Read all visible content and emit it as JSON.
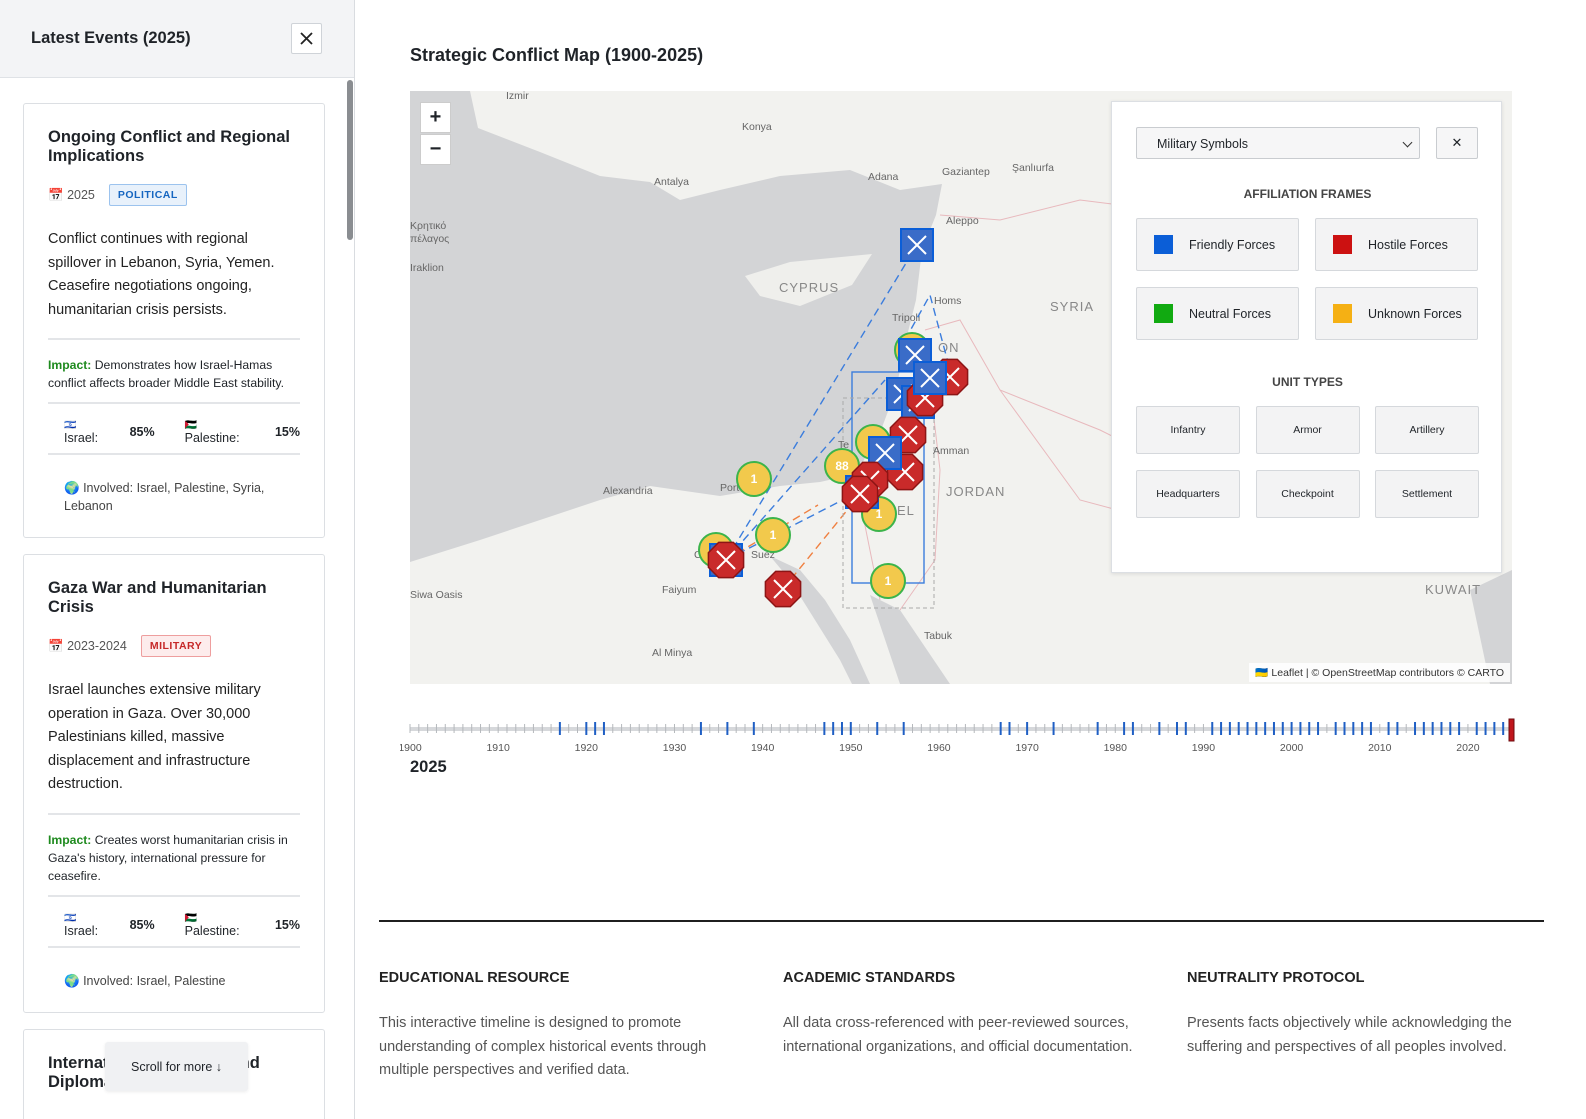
{
  "sidebar": {
    "title": "Latest Events (2025)",
    "icons": {
      "calendar": "📅",
      "globe": "🌍"
    },
    "scroll_hint": "Scroll for more ↓",
    "events": [
      {
        "title": "Ongoing Conflict and Regional Implications",
        "date": "2025",
        "tag": "POLITICAL",
        "description": "Conflict continues with regional spillover in Lebanon, Syria, Yemen. Ceasefire negotiations ongoing, humanitarian crisis persists.",
        "impact_label": "Impact:",
        "impact": "Demonstrates how Israel-Hamas conflict affects broader Middle East stability.",
        "perspectives": [
          {
            "flag": "🇮🇱",
            "label": "Israel:",
            "value": "85%"
          },
          {
            "flag": "🇵🇸",
            "label": "Palestine:",
            "value": "15%"
          }
        ],
        "involved": "Involved: Israel, Palestine, Syria, Lebanon"
      },
      {
        "title": "Gaza War and Humanitarian Crisis",
        "date": "2023-2024",
        "tag": "MILITARY",
        "description": "Israel launches extensive military operation in Gaza. Over 30,000 Palestinians killed, massive displacement and infrastructure destruction.",
        "impact_label": "Impact:",
        "impact": "Creates worst humanitarian crisis in Gaza's history, international pressure for ceasefire.",
        "perspectives": [
          {
            "flag": "🇮🇱",
            "label": "Israel:",
            "value": "85%"
          },
          {
            "flag": "🇵🇸",
            "label": "Palestine:",
            "value": "15%"
          }
        ],
        "involved": "Involved: Israel, Palestine"
      },
      {
        "title": "International Relations and Diplomacy"
      }
    ]
  },
  "map": {
    "title": "Strategic Conflict Map (1900-2025)",
    "zoom_in": "+",
    "zoom_out": "−",
    "attribution": "🇺🇦 Leaflet | © OpenStreetMap contributors © CARTO",
    "places": [
      "İzmir",
      "Konya",
      "Adana",
      "Gaziantep",
      "Şanlıurfa",
      "Antalya",
      "Aleppo",
      "Κρητικό",
      "πέλαγος",
      "Iraklion",
      "CYPRUS",
      "Homs",
      "SYRIA",
      "Tripoli",
      "ON",
      "Amman",
      "JORDAN",
      "Alexandria",
      "Port",
      "Suez",
      "Faiyum",
      "Siwa Oasis",
      "Al Minya",
      "Tabuk",
      "KUWAIT",
      "Te",
      "EL",
      "C"
    ],
    "clusters": [
      "1",
      "1",
      "88",
      "1",
      "1"
    ],
    "legend": {
      "select": "Military Symbols",
      "close": "✕",
      "affiliation_title": "AFFILIATION FRAMES",
      "affiliations": [
        {
          "name": "Friendly Forces",
          "color": "#0b5ed7"
        },
        {
          "name": "Hostile Forces",
          "color": "#cc1111"
        },
        {
          "name": "Neutral Forces",
          "color": "#11aa11"
        },
        {
          "name": "Unknown Forces",
          "color": "#f5b014"
        }
      ],
      "unit_title": "UNIT TYPES",
      "units": [
        "Infantry",
        "Armor",
        "Artillery",
        "Headquarters",
        "Checkpoint",
        "Settlement"
      ]
    }
  },
  "timeline": {
    "range": [
      1900,
      2025
    ],
    "labels": [
      1900,
      1910,
      1920,
      1930,
      1940,
      1950,
      1960,
      1970,
      1980,
      1990,
      2000,
      2010,
      2020
    ],
    "event_years": [
      1917,
      1920,
      1921,
      1922,
      1933,
      1936,
      1939,
      1947,
      1948,
      1949,
      1950,
      1953,
      1956,
      1967,
      1968,
      1970,
      1973,
      1978,
      1981,
      1982,
      1985,
      1987,
      1988,
      1991,
      1992,
      1993,
      1994,
      1995,
      1996,
      1997,
      1998,
      1999,
      2000,
      2001,
      2002,
      2003,
      2005,
      2006,
      2007,
      2008,
      2009,
      2011,
      2012,
      2014,
      2015,
      2016,
      2017,
      2018,
      2019,
      2021,
      2022,
      2023,
      2024
    ],
    "current": "2025"
  },
  "footer": [
    {
      "heading": "EDUCATIONAL RESOURCE",
      "text": "This interactive timeline is designed to promote understanding of complex historical events through multiple perspectives and verified data."
    },
    {
      "heading": "ACADEMIC STANDARDS",
      "text": "All data cross-referenced with peer-reviewed sources, international organizations, and official documentation."
    },
    {
      "heading": "NEUTRALITY PROTOCOL",
      "text": "Presents facts objectively while acknowledging the suffering and perspectives of all peoples involved."
    }
  ]
}
